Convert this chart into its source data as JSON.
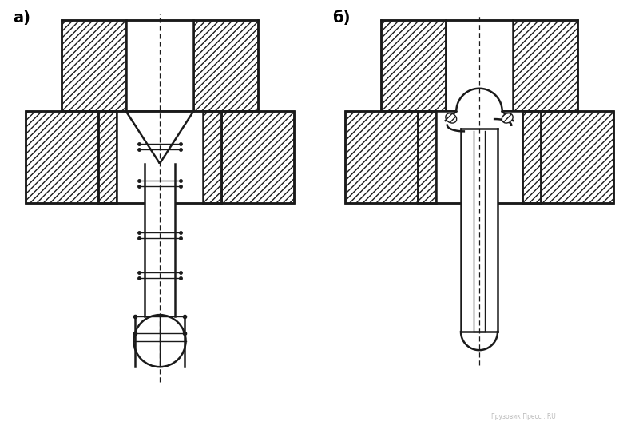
{
  "label_a": "а)",
  "label_b": "б)",
  "bg_color": "#ffffff",
  "lc": "#1a1a1a",
  "lw1": 1.0,
  "lw2": 1.8,
  "fig_width": 8.0,
  "fig_height": 5.47,
  "dpi": 100
}
